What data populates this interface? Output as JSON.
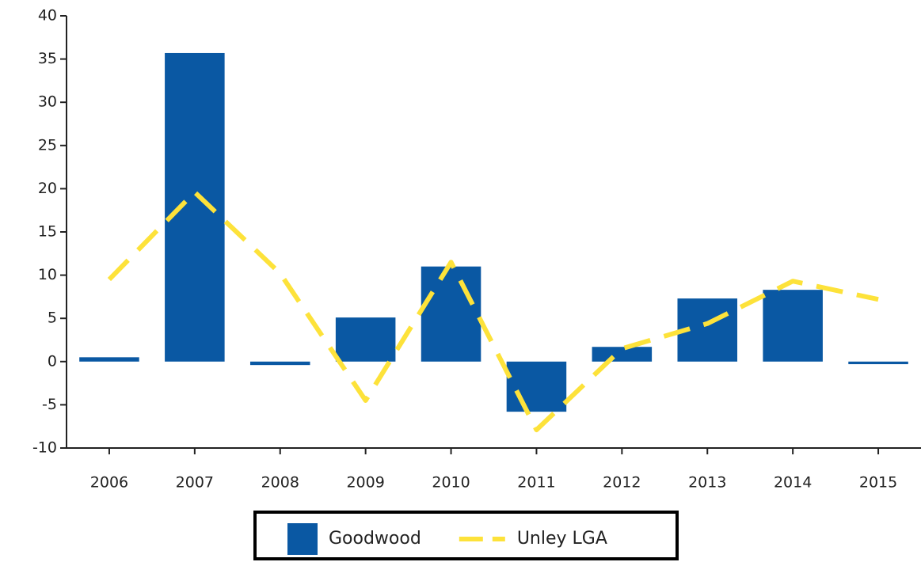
{
  "chart_data": {
    "type": "bar",
    "categories": [
      "2006",
      "2007",
      "2008",
      "2009",
      "2010",
      "2011",
      "2012",
      "2013",
      "2014",
      "2015"
    ],
    "series": [
      {
        "name": "Goodwood",
        "type": "bar",
        "color": "#0a58a3",
        "values": [
          0.5,
          35.7,
          -0.4,
          5.1,
          11.0,
          -5.8,
          1.7,
          7.3,
          8.3,
          -0.3
        ]
      },
      {
        "name": "Unley LGA",
        "type": "line",
        "color": "#fde23a",
        "values": [
          9.5,
          19.6,
          10.2,
          -4.5,
          11.5,
          -7.9,
          1.5,
          4.4,
          9.3,
          7.2
        ]
      }
    ],
    "ylim": [
      -10,
      40
    ],
    "yticks": [
      -10,
      -5,
      0,
      5,
      10,
      15,
      20,
      25,
      30,
      35,
      40
    ],
    "grid": false,
    "legend": "bottom"
  }
}
